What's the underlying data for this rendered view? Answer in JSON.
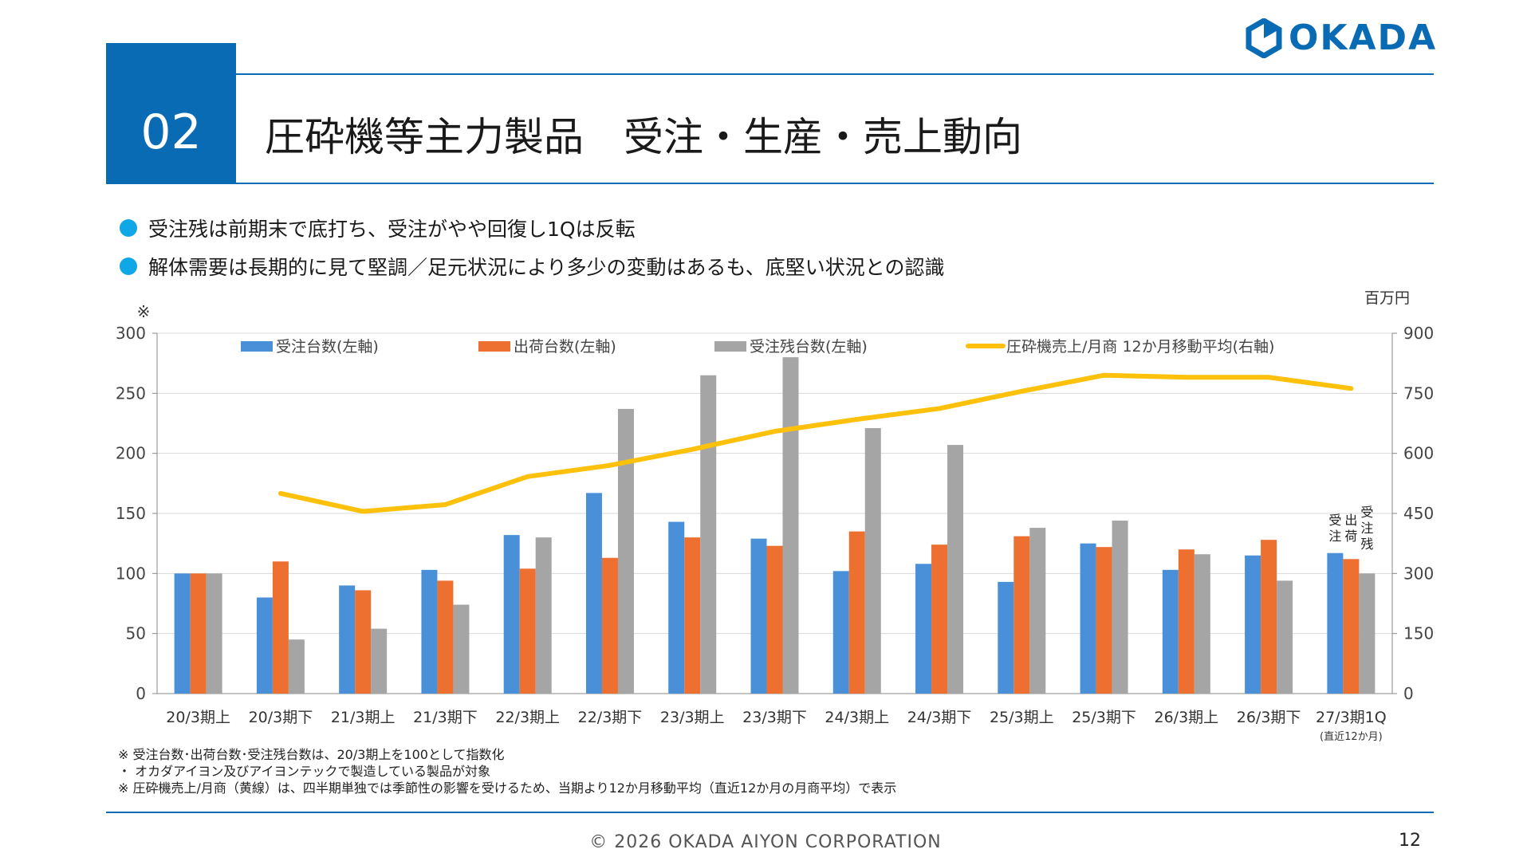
{
  "brand": {
    "name": "OKADA",
    "color": "#0a6bb5",
    "icon": "hexagon-logo-icon"
  },
  "header": {
    "section_number": "02",
    "title": "圧砕機等主力製品　受注・生産・売上動向"
  },
  "bullets": [
    "受注残は前期末で底打ち、受注がやや回復し1Qは反転",
    "解体需要は長期的に見て堅調／足元状況により多少の変動はあるも、底堅い状況との認識"
  ],
  "chart_data": {
    "type": "bar",
    "left_axis_marker": "※",
    "right_axis_unit": "百万円",
    "categories": [
      "20/3期上",
      "20/3期下",
      "21/3期上",
      "21/3期下",
      "22/3期上",
      "22/3期下",
      "23/3期上",
      "23/3期下",
      "24/3期上",
      "24/3期下",
      "25/3期上",
      "25/3期下",
      "26/3期上",
      "26/3期下",
      "27/3期1Q"
    ],
    "category_sub_label": "(直近12か月)",
    "ylim_left": [
      0,
      300
    ],
    "ylim_right": [
      0,
      900
    ],
    "yticks_left": [
      "0",
      "50",
      "100",
      "150",
      "200",
      "250",
      "300"
    ],
    "yticks_right": [
      "0",
      "150",
      "300",
      "450",
      "600",
      "750",
      "900"
    ],
    "grid": true,
    "legend_placement": "top",
    "series": [
      {
        "name": "受注台数(左軸)",
        "type": "bar",
        "axis": "left",
        "color": "#4a90d9",
        "values": [
          100,
          80,
          90,
          103,
          132,
          167,
          143,
          129,
          102,
          108,
          93,
          125,
          103,
          115,
          117
        ]
      },
      {
        "name": "出荷台数(左軸)",
        "type": "bar",
        "axis": "left",
        "color": "#ed7031",
        "values": [
          100,
          110,
          86,
          94,
          104,
          113,
          130,
          123,
          135,
          124,
          131,
          122,
          120,
          128,
          112
        ]
      },
      {
        "name": "受注残台数(左軸)",
        "type": "bar",
        "axis": "left",
        "color": "#a5a5a5",
        "values": [
          100,
          45,
          54,
          74,
          130,
          237,
          265,
          280,
          221,
          207,
          138,
          144,
          116,
          94,
          100
        ]
      },
      {
        "name": "圧砕機売上/月商 12か月移動平均(右軸)",
        "type": "line",
        "axis": "right",
        "color": "#fdc10c",
        "values": [
          null,
          500,
          455,
          472,
          542,
          570,
          610,
          655,
          685,
          712,
          755,
          795,
          790,
          790,
          762
        ]
      }
    ],
    "bar_annotations": [
      "受注",
      "出荷",
      "受注残"
    ]
  },
  "notes": [
    "※ 受注台数･出荷台数･受注残台数は、20/3期上を100として指数化",
    "・ オカダアイヨン及びアイヨンテックで製造している製品が対象",
    "※ 圧砕機売上/月商（黄線）は、四半期単独では季節性の影響を受けるため、当期より12か月移動平均（直近12か月の月商平均）で表示"
  ],
  "footer": {
    "copyright": "© 2026 OKADA AIYON CORPORATION",
    "page_number": "12"
  }
}
